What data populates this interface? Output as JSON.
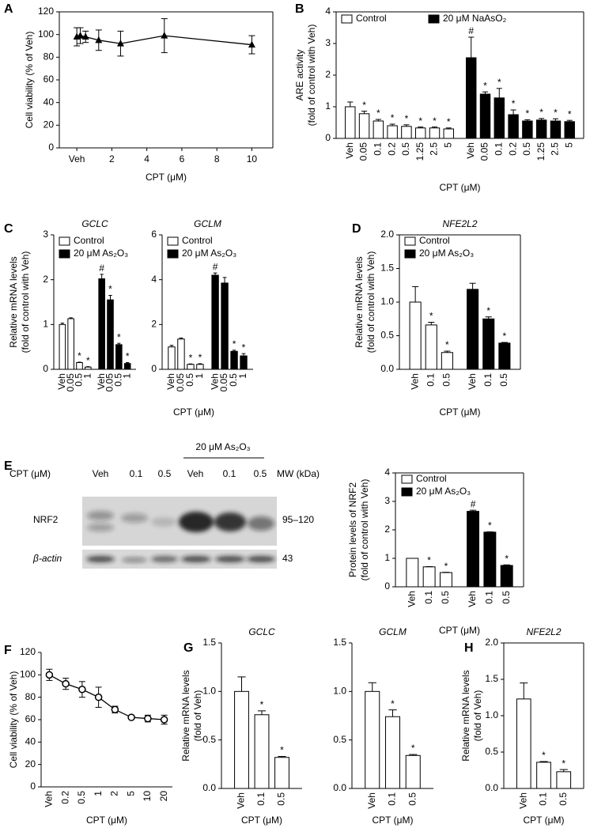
{
  "chart_data": [
    {
      "type": "line",
      "panel": "A",
      "ylabel": [
        "Cell viability (% of Veh)"
      ],
      "xlabel": "CPT (μM)",
      "x": [
        0,
        0.2,
        0.5,
        1.25,
        2.5,
        5,
        10
      ],
      "values": [
        98,
        99,
        98,
        95,
        92,
        99,
        91
      ],
      "errors": [
        8,
        7,
        5,
        9,
        11,
        15,
        8
      ],
      "color": "#000000",
      "marker": "triangle",
      "xlim": [
        -1,
        11.2
      ],
      "xticks": [
        {
          "value": 0,
          "label": "Veh"
        },
        2,
        4,
        6,
        8,
        10
      ],
      "ylim": [
        0,
        120
      ],
      "yticks": [
        0,
        20,
        40,
        60,
        80,
        100,
        120
      ]
    },
    {
      "type": "bar",
      "panel": "B",
      "ylabel": [
        "ARE activity",
        "(fold of control with Veh)"
      ],
      "xlabel": "CPT (μM)",
      "categories": [
        "Veh",
        "0.05",
        "0.1",
        "0.2",
        "0.5",
        "1.25",
        "2.5",
        "5"
      ],
      "legend": "upper left",
      "series": [
        {
          "name": "Control",
          "color": "#ffffff",
          "values": [
            1.0,
            0.78,
            0.55,
            0.4,
            0.38,
            0.33,
            0.33,
            0.3
          ],
          "errors": [
            0.15,
            0.08,
            0.05,
            0.05,
            0.05,
            0.03,
            0.03,
            0.03
          ],
          "markers": [
            null,
            "*",
            "*",
            "*",
            "*",
            "*",
            "*",
            "*"
          ]
        },
        {
          "name": "20 μM NaAsO₂",
          "color": "#000000",
          "values": [
            2.55,
            1.4,
            1.28,
            0.75,
            0.55,
            0.58,
            0.55,
            0.53
          ],
          "errors": [
            0.65,
            0.07,
            0.3,
            0.15,
            0.04,
            0.05,
            0.07,
            0.04
          ],
          "markers": [
            "#",
            "*",
            "*",
            "*",
            "*",
            "*",
            "*",
            "*"
          ]
        }
      ],
      "ylim": [
        0,
        4
      ],
      "yticks": [
        0,
        1,
        2,
        3,
        4
      ]
    },
    {
      "type": "bar",
      "panel": "C",
      "title": "GCLC",
      "ylabel": [
        "Relative mRNA levels",
        "(fold of control with Veh)"
      ],
      "xlabel": "CPT (μM)",
      "categories": [
        "Veh",
        "0.05",
        "0.5",
        "1"
      ],
      "legend": "upper left",
      "series": [
        {
          "name": "Control",
          "color": "#ffffff",
          "values": [
            1.0,
            1.13,
            0.15,
            0.05
          ],
          "errors": [
            0.03,
            0.02,
            0.01,
            0.01
          ],
          "markers": [
            null,
            null,
            "*",
            "*"
          ]
        },
        {
          "name": "20 μM As₂O₃",
          "color": "#000000",
          "values": [
            2.02,
            1.55,
            0.55,
            0.13
          ],
          "errors": [
            0.1,
            0.1,
            0.03,
            0.02
          ],
          "markers": [
            "#",
            "*",
            "*",
            "*"
          ]
        }
      ],
      "ylim": [
        0,
        3
      ],
      "yticks": [
        0,
        1,
        2,
        3
      ]
    },
    {
      "type": "bar",
      "title": "GCLM",
      "categories": [
        "Veh",
        "0.05",
        "0.5",
        "1"
      ],
      "legend": "upper left",
      "series": [
        {
          "name": "Control",
          "color": "#ffffff",
          "values": [
            1.0,
            1.35,
            0.22,
            0.22
          ],
          "errors": [
            0.07,
            0.05,
            0.02,
            0.03
          ],
          "markers": [
            null,
            null,
            "*",
            "*"
          ]
        },
        {
          "name": "20 μM As₂O₃",
          "color": "#000000",
          "values": [
            4.2,
            3.85,
            0.8,
            0.6
          ],
          "errors": [
            0.1,
            0.25,
            0.05,
            0.1
          ],
          "markers": [
            "#",
            null,
            "*",
            "*"
          ]
        }
      ],
      "ylim": [
        0,
        6
      ],
      "yticks": [
        0,
        2,
        4,
        6
      ]
    },
    {
      "type": "bar",
      "panel": "D",
      "title": "NFE2L2",
      "ylabel": [
        "Relative mRNA levels",
        "(fold of control with Veh)"
      ],
      "xlabel": "CPT (μM)",
      "categories": [
        "Veh",
        "0.1",
        "0.5"
      ],
      "legend": "upper left",
      "series": [
        {
          "name": "Control",
          "color": "#ffffff",
          "values": [
            1.0,
            0.66,
            0.25
          ],
          "errors": [
            0.23,
            0.04,
            0.02
          ],
          "markers": [
            null,
            "*",
            "*"
          ]
        },
        {
          "name": "20 μM As₂O₃",
          "color": "#000000",
          "values": [
            1.19,
            0.75,
            0.39
          ],
          "errors": [
            0.09,
            0.03,
            0.01
          ],
          "markers": [
            null,
            "*",
            "*"
          ]
        }
      ],
      "ylim": [
        0,
        2
      ],
      "yticks": [
        {
          "value": 0,
          "label": "0.0"
        },
        0.5,
        {
          "value": 1,
          "label": "1.0"
        },
        1.5,
        {
          "value": 2,
          "label": "2.0"
        }
      ]
    },
    {
      "type": "bar",
      "ylabel": [
        "Protein levels of NRF2",
        "(fold of control with Veh)"
      ],
      "xlabel": "CPT (μM)",
      "categories": [
        "Veh",
        "0.1",
        "0.5"
      ],
      "legend": "upper left",
      "series": [
        {
          "name": "Control",
          "color": "#ffffff",
          "values": [
            1.0,
            0.7,
            0.5
          ],
          "errors": [
            0,
            0.01,
            0.01
          ],
          "markers": [
            null,
            "*",
            "*"
          ]
        },
        {
          "name": "20 μM As₂O₃",
          "color": "#000000",
          "values": [
            2.65,
            1.92,
            0.75
          ],
          "errors": [
            0.04,
            0.01,
            0.02
          ],
          "markers": [
            "#",
            "*",
            "*"
          ]
        }
      ],
      "ylim": [
        0,
        4
      ],
      "yticks": [
        0,
        1,
        2,
        3,
        4
      ]
    },
    {
      "type": "line",
      "panel": "F",
      "ylabel": [
        "Cell viability (% of Veh)"
      ],
      "xlabel": "CPT (μM)",
      "categories": [
        "Veh",
        "0.2",
        "0.5",
        "1",
        "2",
        "5",
        "10",
        "20"
      ],
      "values": [
        100,
        92,
        87,
        80,
        69,
        62,
        61,
        60
      ],
      "errors": [
        5,
        5,
        7,
        9,
        3,
        1,
        3,
        4
      ],
      "color": "#000000",
      "marker": "circle",
      "ylim": [
        0,
        120
      ],
      "yticks": [
        0,
        20,
        40,
        60,
        80,
        100,
        120
      ]
    },
    {
      "type": "bar",
      "panel": "G",
      "title": "GCLC",
      "ylabel": [
        "Relative mRNA levels",
        "(fold of Veh)"
      ],
      "xlabel": "CPT (μM)",
      "categories": [
        "Veh",
        "0.1",
        "0.5"
      ],
      "color": "#ffffff",
      "values": [
        1.0,
        0.76,
        0.32
      ],
      "errors": [
        0.15,
        0.04,
        0.01
      ],
      "markers": [
        null,
        "*",
        "*"
      ],
      "ylim": [
        0,
        1.5
      ],
      "yticks": [
        {
          "value": 0,
          "label": "0.0"
        },
        0.5,
        {
          "value": 1,
          "label": "1.0"
        },
        1.5
      ]
    },
    {
      "type": "bar",
      "title": "GCLM",
      "xlabel": "CPT (μM)",
      "categories": [
        "Veh",
        "0.1",
        "0.5"
      ],
      "color": "#ffffff",
      "values": [
        1.0,
        0.74,
        0.34
      ],
      "errors": [
        0.09,
        0.07,
        0.01
      ],
      "markers": [
        null,
        "*",
        "*"
      ],
      "ylim": [
        0,
        1.5
      ],
      "yticks": [
        {
          "value": 0,
          "label": "0.0"
        },
        0.5,
        {
          "value": 1,
          "label": "1.0"
        },
        1.5
      ]
    },
    {
      "type": "bar",
      "panel": "H",
      "title": "NFE2L2",
      "ylabel": [
        "Relative mRNA levels",
        "(fold of Veh)"
      ],
      "xlabel": "CPT (μM)",
      "categories": [
        "Veh",
        "0.1",
        "0.5"
      ],
      "color": "#ffffff",
      "values": [
        1.23,
        0.36,
        0.23
      ],
      "errors": [
        0.22,
        0.01,
        0.03
      ],
      "markers": [
        null,
        "*",
        "*"
      ],
      "ylim": [
        0,
        2
      ],
      "yticks": [
        {
          "value": 0,
          "label": "0.0"
        },
        0.5,
        {
          "value": 1,
          "label": "1.0"
        },
        1.5,
        {
          "value": 2,
          "label": "2.0"
        }
      ]
    }
  ],
  "blot": {
    "panel": "E",
    "treatment": "20 μM As₂O₃",
    "row_label": "CPT (μM)",
    "lanes": [
      "Veh",
      "0.1",
      "0.5",
      "Veh",
      "0.1",
      "0.5"
    ],
    "mw_header": "MW (kDa)",
    "bands": [
      {
        "name": "NRF2",
        "mw": "95–120"
      },
      {
        "name": "β-actin",
        "mw": "43"
      }
    ]
  }
}
